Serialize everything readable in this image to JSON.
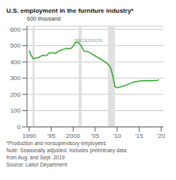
{
  "chart_data": {
    "type": "line",
    "title": "U.S. employment in the furniture industry*",
    "y_label": "600 thousand",
    "footnote": "*Production and nonsupervisory employees\nNote: Seasonally adjusted. Includes preliminary data\nfrom Aug. and Sept. 2019\nSource: Labor Department",
    "recession_bands": [
      [
        1990.75,
        1991.25
      ],
      [
        2001.25,
        2001.92
      ],
      [
        2007.92,
        2009.5
      ]
    ],
    "annotations": [
      {
        "text": "RECESSION",
        "x": 2003.5,
        "y": 570
      }
    ],
    "color": "#3aaa35",
    "grid": true,
    "xlim": [
      1989.5,
      2020.5
    ],
    "ylim": [
      0,
      620
    ],
    "xticks": [
      1990,
      {
        "value": 1995,
        "label": "'95"
      },
      2000,
      {
        "value": 2005,
        "label": "'05"
      },
      {
        "value": 2010,
        "label": "'10"
      },
      {
        "value": 2015,
        "label": "'15"
      },
      {
        "value": 2020,
        "label": "'20"
      }
    ],
    "yticks": [
      0,
      100,
      200,
      300,
      400,
      500,
      600
    ],
    "x": [
      1990.0,
      1990.5,
      1991.0,
      1991.5,
      1992.0,
      1992.5,
      1993.0,
      1993.5,
      1994.0,
      1994.5,
      1995.0,
      1995.5,
      1996.0,
      1996.5,
      1997.0,
      1997.5,
      1998.0,
      1998.5,
      1999.0,
      1999.5,
      2000.0,
      2000.5,
      2001.0,
      2001.5,
      2002.0,
      2002.5,
      2003.0,
      2003.5,
      2004.0,
      2004.5,
      2005.0,
      2005.5,
      2006.0,
      2006.5,
      2007.0,
      2007.5,
      2008.0,
      2008.5,
      2009.0,
      2009.5,
      2010.0,
      2010.5,
      2011.0,
      2011.5,
      2012.0,
      2012.5,
      2013.0,
      2013.5,
      2014.0,
      2014.5,
      2015.0,
      2015.5,
      2016.0,
      2016.5,
      2017.0,
      2017.5,
      2018.0,
      2018.5,
      2019.0,
      2019.5
    ],
    "values": [
      470,
      438,
      418,
      425,
      425,
      433,
      441,
      439,
      440,
      454,
      457,
      456,
      452,
      462,
      469,
      476,
      479,
      483,
      481,
      483,
      497,
      520,
      521,
      510,
      490,
      466,
      465,
      462,
      453,
      445,
      437,
      429,
      421,
      413,
      405,
      395,
      383,
      364,
      316,
      248,
      241,
      244,
      248,
      252,
      256,
      263,
      268,
      274,
      277,
      280,
      282,
      283,
      284,
      284,
      285,
      284,
      284,
      285,
      285,
      290
    ]
  }
}
